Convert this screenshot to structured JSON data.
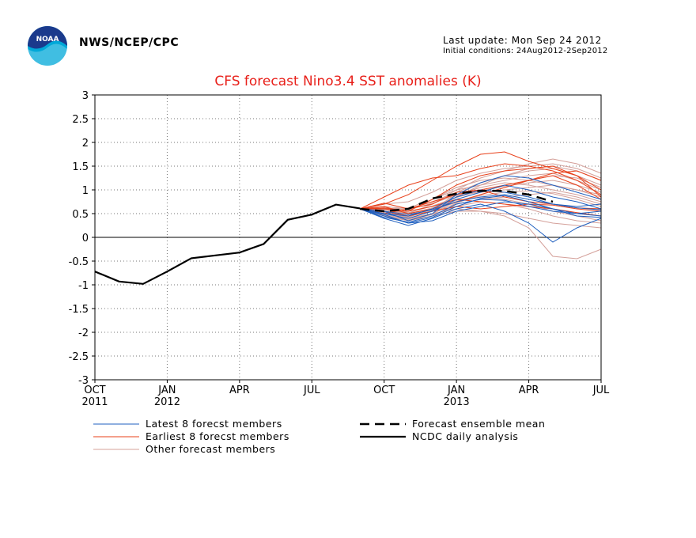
{
  "header": {
    "agency": "NWS/NCEP/CPC",
    "last_update": "Last update: Mon Sep 24 2012",
    "initial_conditions": "Initial conditions: 24Aug2012-2Sep2012",
    "logo_text": "NOAA",
    "logo_icon": "noaa-logo-icon"
  },
  "colors": {
    "title": "#e8201a",
    "latest": "#1f5fbf",
    "earliest": "#e8401a",
    "other": "#d4a09a",
    "mean": "#000000"
  },
  "chart_data": {
    "type": "line",
    "title": "CFS forecast Nino3.4 SST anomalies (K)",
    "ylim": [
      -3,
      3
    ],
    "yticks": [
      "3",
      "2.5",
      "2",
      "1.5",
      "1",
      "0.5",
      "0",
      "-0.5",
      "-1",
      "-1.5",
      "-2",
      "-2.5",
      "-3"
    ],
    "xticks": [
      {
        "label": "OCT",
        "sub": "2011"
      },
      {
        "label": "JAN",
        "sub": "2012"
      },
      {
        "label": "APR",
        "sub": ""
      },
      {
        "label": "JUL",
        "sub": ""
      },
      {
        "label": "OCT",
        "sub": ""
      },
      {
        "label": "JAN",
        "sub": "2013"
      },
      {
        "label": "APR",
        "sub": ""
      },
      {
        "label": "JUL",
        "sub": ""
      }
    ],
    "grid": true,
    "zero_line": true,
    "observed": {
      "name": "NCDC daily analysis",
      "values": [
        [
          0,
          -0.72
        ],
        [
          1,
          -0.93
        ],
        [
          2,
          -0.98
        ],
        [
          3,
          -0.72
        ],
        [
          4,
          -0.44
        ],
        [
          5,
          -0.38
        ],
        [
          6,
          -0.32
        ],
        [
          7,
          -0.14
        ],
        [
          8,
          0.37
        ],
        [
          9,
          0.48
        ],
        [
          10,
          0.69
        ],
        [
          11,
          0.61
        ]
      ]
    },
    "ensemble_mean": {
      "name": "Forecast ensemble mean",
      "values": [
        [
          11,
          0.6
        ],
        [
          12,
          0.55
        ],
        [
          13,
          0.6
        ],
        [
          14,
          0.82
        ],
        [
          15,
          0.92
        ],
        [
          16,
          0.98
        ],
        [
          17,
          0.98
        ],
        [
          18,
          0.9
        ],
        [
          19,
          0.75
        ]
      ]
    },
    "members": {
      "latest": [
        [
          0.6,
          0.5,
          0.4,
          0.55,
          0.8,
          0.95,
          1.1,
          1.0,
          0.85,
          0.75,
          0.6
        ],
        [
          0.6,
          0.45,
          0.3,
          0.35,
          0.55,
          0.65,
          0.75,
          0.7,
          0.6,
          0.5,
          0.45
        ],
        [
          0.6,
          0.55,
          0.35,
          0.5,
          0.9,
          1.15,
          1.3,
          1.25,
          1.1,
          0.95,
          0.8
        ],
        [
          0.6,
          0.4,
          0.25,
          0.4,
          0.6,
          0.7,
          0.55,
          0.3,
          -0.1,
          0.2,
          0.4
        ],
        [
          0.6,
          0.5,
          0.45,
          0.6,
          0.85,
          1.0,
          0.95,
          0.85,
          0.7,
          0.65,
          0.7
        ],
        [
          0.6,
          0.42,
          0.32,
          0.45,
          0.7,
          0.8,
          0.78,
          0.65,
          0.55,
          0.5,
          0.55
        ],
        [
          0.6,
          0.55,
          0.48,
          0.58,
          0.75,
          0.85,
          0.9,
          0.8,
          0.7,
          0.62,
          0.58
        ],
        [
          0.6,
          0.48,
          0.3,
          0.42,
          0.65,
          0.82,
          0.88,
          0.75,
          0.6,
          0.45,
          0.42
        ]
      ],
      "earliest": [
        [
          0.6,
          0.7,
          0.9,
          1.2,
          1.5,
          1.75,
          1.8,
          1.6,
          1.45,
          1.3,
          1.0
        ],
        [
          0.6,
          0.85,
          1.1,
          1.25,
          1.3,
          1.45,
          1.55,
          1.5,
          1.4,
          1.2,
          0.9
        ],
        [
          0.6,
          0.6,
          0.55,
          0.8,
          1.1,
          1.3,
          1.4,
          1.45,
          1.5,
          1.3,
          0.85
        ],
        [
          0.6,
          0.5,
          0.6,
          0.75,
          0.9,
          1.0,
          1.1,
          1.2,
          1.3,
          1.1,
          0.8
        ],
        [
          0.6,
          0.65,
          0.5,
          0.6,
          0.75,
          0.9,
          1.05,
          1.2,
          1.35,
          1.4,
          1.2
        ],
        [
          0.6,
          0.55,
          0.45,
          0.55,
          0.65,
          0.6,
          0.65,
          0.7,
          0.68,
          0.6,
          0.55
        ],
        [
          0.6,
          0.72,
          0.6,
          0.7,
          0.95,
          1.0,
          0.85,
          0.75,
          0.7,
          0.62,
          0.6
        ],
        [
          0.6,
          0.62,
          0.55,
          0.65,
          0.8,
          0.75,
          0.7,
          0.65,
          0.6,
          0.52,
          0.45
        ]
      ],
      "other": [
        [
          0.6,
          0.55,
          0.45,
          0.6,
          0.85,
          1.1,
          1.3,
          1.45,
          1.5,
          1.4,
          1.2
        ],
        [
          0.6,
          0.6,
          0.5,
          0.7,
          1.0,
          1.25,
          1.4,
          1.55,
          1.65,
          1.55,
          1.35
        ],
        [
          0.6,
          0.5,
          0.4,
          0.5,
          0.6,
          0.55,
          0.45,
          0.2,
          -0.4,
          -0.45,
          -0.25
        ],
        [
          0.6,
          0.45,
          0.35,
          0.45,
          0.55,
          0.55,
          0.5,
          0.4,
          0.3,
          0.25,
          0.2
        ],
        [
          0.6,
          0.65,
          0.6,
          0.75,
          0.95,
          1.15,
          1.3,
          1.4,
          1.45,
          1.3,
          1.1
        ],
        [
          0.6,
          0.5,
          0.55,
          0.8,
          1.05,
          1.2,
          1.25,
          1.2,
          1.1,
          1.0,
          0.9
        ],
        [
          0.6,
          0.58,
          0.48,
          0.55,
          0.7,
          0.8,
          0.85,
          0.9,
          0.95,
          0.85,
          0.7
        ],
        [
          0.6,
          0.52,
          0.42,
          0.6,
          0.9,
          1.05,
          1.15,
          1.1,
          1.0,
          0.9,
          0.75
        ],
        [
          0.6,
          0.62,
          0.58,
          0.72,
          0.88,
          0.95,
          1.0,
          1.05,
          1.1,
          1.0,
          0.85
        ],
        [
          0.6,
          0.48,
          0.38,
          0.5,
          0.72,
          0.9,
          1.05,
          1.2,
          1.3,
          1.25,
          1.05
        ],
        [
          0.6,
          0.55,
          0.5,
          0.62,
          0.78,
          0.85,
          0.8,
          0.7,
          0.55,
          0.45,
          0.35
        ],
        [
          0.6,
          0.7,
          0.75,
          0.95,
          1.2,
          1.35,
          1.45,
          1.5,
          1.55,
          1.45,
          1.25
        ],
        [
          0.6,
          0.46,
          0.36,
          0.48,
          0.65,
          0.75,
          0.7,
          0.6,
          0.45,
          0.35,
          0.3
        ],
        [
          0.6,
          0.6,
          0.62,
          0.8,
          1.0,
          1.1,
          1.2,
          1.3,
          1.35,
          1.2,
          1.0
        ],
        [
          0.6,
          0.52,
          0.44,
          0.56,
          0.74,
          0.88,
          0.95,
          0.98,
          0.92,
          0.8,
          0.65
        ],
        [
          0.6,
          0.58,
          0.52,
          0.66,
          0.84,
          0.98,
          1.08,
          1.15,
          1.2,
          1.1,
          0.95
        ]
      ]
    },
    "legend": [
      {
        "label": "Latest 8 forecst members",
        "style": "latest"
      },
      {
        "label": "Earliest 8 forecst members",
        "style": "earliest"
      },
      {
        "label": "Other forecast members",
        "style": "other"
      },
      {
        "label": "Forecast ensemble mean",
        "style": "mean"
      },
      {
        "label": "NCDC daily analysis",
        "style": "obs"
      }
    ]
  }
}
